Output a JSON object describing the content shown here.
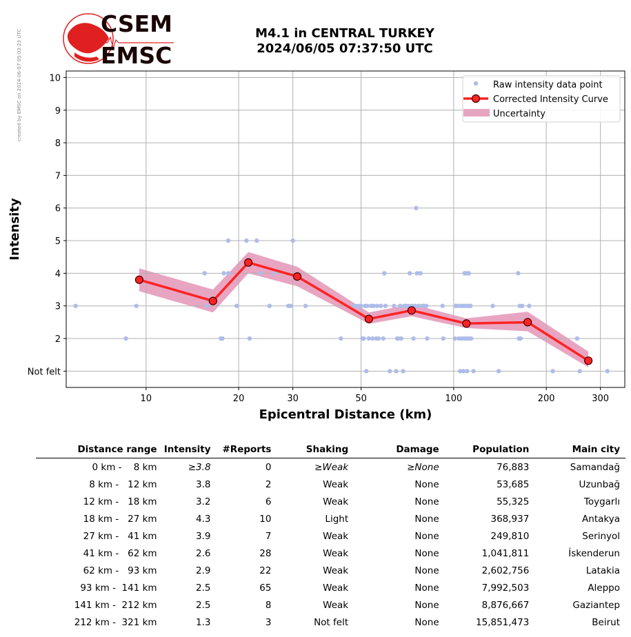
{
  "side_note": "created by EMSC on 2024-06-07 05:03:23 UTC",
  "logo": {
    "line1": "CSEM",
    "line2": "EMSC"
  },
  "title_line1": "M4.1 in CENTRAL TURKEY",
  "title_line2": "2024/06/05 07:37:50 UTC",
  "colors": {
    "raw": "#aebce8",
    "curve": "#ff2222",
    "marker_edge": "#3a0000",
    "band": "#e8a5c2",
    "grid": "#b0b0b0",
    "logo_red": "#e02020"
  },
  "chart_data": {
    "type": "scatter",
    "xlabel": "Epicentral Distance (km)",
    "ylabel": "Intensity",
    "x_scale": "log",
    "xlim": [
      5.5,
      360
    ],
    "ylim": [
      0.5,
      10.2
    ],
    "x_ticks": [
      10,
      20,
      30,
      50,
      100,
      200,
      300
    ],
    "y_ticks": [
      1,
      2,
      3,
      4,
      5,
      6,
      7,
      8,
      9,
      10
    ],
    "y_tick_labels": [
      "Not felt",
      "2",
      "3",
      "4",
      "5",
      "6",
      "7",
      "8",
      "9",
      "10"
    ],
    "grid": true,
    "legend_position": "top-right",
    "legend": [
      "Raw intensity data point",
      "Corrected Intensity Curve",
      "Uncertainty"
    ],
    "raw_points": [
      [
        5.9,
        3
      ],
      [
        8.6,
        2
      ],
      [
        9.3,
        3
      ],
      [
        15.5,
        4
      ],
      [
        15.8,
        3
      ],
      [
        17.5,
        2
      ],
      [
        17.7,
        2
      ],
      [
        17.9,
        4
      ],
      [
        18.5,
        4
      ],
      [
        18.5,
        5
      ],
      [
        19.7,
        3
      ],
      [
        21.2,
        5
      ],
      [
        21.7,
        2
      ],
      [
        22.9,
        5
      ],
      [
        23.5,
        4
      ],
      [
        25.2,
        3
      ],
      [
        26.2,
        4
      ],
      [
        29.0,
        3
      ],
      [
        29.5,
        3
      ],
      [
        30.0,
        5
      ],
      [
        33.0,
        3
      ],
      [
        43.0,
        2
      ],
      [
        47.5,
        3
      ],
      [
        48.5,
        3
      ],
      [
        49.5,
        3
      ],
      [
        50.0,
        3
      ],
      [
        50.5,
        2
      ],
      [
        51.0,
        2
      ],
      [
        51.5,
        3
      ],
      [
        52.0,
        1
      ],
      [
        52.5,
        3
      ],
      [
        53.0,
        2
      ],
      [
        54.0,
        3
      ],
      [
        54.5,
        2
      ],
      [
        55.0,
        3
      ],
      [
        56.0,
        2
      ],
      [
        56.5,
        3
      ],
      [
        57.0,
        2
      ],
      [
        58.0,
        3
      ],
      [
        59.0,
        2
      ],
      [
        59.5,
        4
      ],
      [
        60.0,
        3
      ],
      [
        62.0,
        1
      ],
      [
        64.0,
        3
      ],
      [
        65.0,
        1
      ],
      [
        65.5,
        2
      ],
      [
        66.0,
        2
      ],
      [
        67.0,
        3
      ],
      [
        67.5,
        2
      ],
      [
        68.5,
        1
      ],
      [
        69.0,
        3
      ],
      [
        70.0,
        3
      ],
      [
        71.0,
        3
      ],
      [
        72.0,
        4
      ],
      [
        73.0,
        3
      ],
      [
        73.5,
        3
      ],
      [
        74.0,
        2
      ],
      [
        75.0,
        3
      ],
      [
        75.5,
        6
      ],
      [
        76.0,
        4
      ],
      [
        77.0,
        3
      ],
      [
        78.0,
        4
      ],
      [
        79.0,
        3
      ],
      [
        80.0,
        3
      ],
      [
        82.0,
        2
      ],
      [
        81.5,
        3
      ],
      [
        92.0,
        3
      ],
      [
        92.5,
        2
      ],
      [
        101.0,
        2
      ],
      [
        101.5,
        3
      ],
      [
        103.0,
        3
      ],
      [
        104.0,
        2
      ],
      [
        105.0,
        1
      ],
      [
        105.5,
        3
      ],
      [
        106.0,
        2
      ],
      [
        107.0,
        3
      ],
      [
        107.5,
        1
      ],
      [
        108.0,
        2
      ],
      [
        108.5,
        4
      ],
      [
        109.0,
        3
      ],
      [
        109.5,
        2
      ],
      [
        110.0,
        4
      ],
      [
        110.5,
        1
      ],
      [
        111.0,
        3
      ],
      [
        111.5,
        2
      ],
      [
        112.0,
        4
      ],
      [
        112.5,
        3
      ],
      [
        113.0,
        2
      ],
      [
        113.5,
        3
      ],
      [
        114.0,
        2
      ],
      [
        116.0,
        1
      ],
      [
        134.0,
        3
      ],
      [
        140.0,
        1
      ],
      [
        162.0,
        4
      ],
      [
        163.0,
        2
      ],
      [
        164.0,
        3
      ],
      [
        165.0,
        2
      ],
      [
        167.0,
        3
      ],
      [
        176.0,
        3
      ],
      [
        210.0,
        1
      ],
      [
        252.0,
        2
      ],
      [
        257.0,
        1
      ],
      [
        316.0,
        1
      ]
    ],
    "corrected_curve": [
      {
        "x": 9.5,
        "y": 3.8
      },
      {
        "x": 16.5,
        "y": 3.15
      },
      {
        "x": 21.5,
        "y": 4.33
      },
      {
        "x": 31.0,
        "y": 3.9
      },
      {
        "x": 53.0,
        "y": 2.6
      },
      {
        "x": 73.0,
        "y": 2.86
      },
      {
        "x": 110.0,
        "y": 2.46
      },
      {
        "x": 174.0,
        "y": 2.5
      },
      {
        "x": 274.0,
        "y": 1.32
      }
    ],
    "uncertainty": [
      {
        "x": 9.5,
        "lo": 3.45,
        "hi": 4.15
      },
      {
        "x": 16.5,
        "lo": 2.8,
        "hi": 3.5
      },
      {
        "x": 21.5,
        "lo": 4.0,
        "hi": 4.65
      },
      {
        "x": 31.0,
        "lo": 3.6,
        "hi": 4.2
      },
      {
        "x": 53.0,
        "lo": 2.45,
        "hi": 2.8
      },
      {
        "x": 73.0,
        "lo": 2.68,
        "hi": 3.05
      },
      {
        "x": 110.0,
        "lo": 2.32,
        "hi": 2.62
      },
      {
        "x": 174.0,
        "lo": 2.22,
        "hi": 2.82
      },
      {
        "x": 274.0,
        "lo": 1.12,
        "hi": 1.6
      }
    ]
  },
  "table": {
    "headers": [
      "Distance range",
      "Intensity",
      "#Reports",
      "Shaking",
      "Damage",
      "Population",
      "Main city"
    ],
    "rows": [
      {
        "range": "0 km -    8 km",
        "intensity": "≥3.8",
        "reports": "0",
        "shaking": "≥Weak",
        "damage": "≥None",
        "population": "76,883",
        "city": "Samandağ"
      },
      {
        "range": "8 km -   12 km",
        "intensity": "3.8",
        "reports": "2",
        "shaking": "Weak",
        "damage": "None",
        "population": "53,685",
        "city": "Uzunbağ"
      },
      {
        "range": "12 km -   18 km",
        "intensity": "3.2",
        "reports": "6",
        "shaking": "Weak",
        "damage": "None",
        "population": "55,325",
        "city": "Toygarlı"
      },
      {
        "range": "18 km -   27 km",
        "intensity": "4.3",
        "reports": "10",
        "shaking": "Light",
        "damage": "None",
        "population": "368,937",
        "city": "Antakya"
      },
      {
        "range": "27 km -   41 km",
        "intensity": "3.9",
        "reports": "7",
        "shaking": "Weak",
        "damage": "None",
        "population": "249,810",
        "city": "Serinyol"
      },
      {
        "range": "41 km -   62 km",
        "intensity": "2.6",
        "reports": "28",
        "shaking": "Weak",
        "damage": "None",
        "population": "1,041,811",
        "city": "İskenderun"
      },
      {
        "range": "62 km -   93 km",
        "intensity": "2.9",
        "reports": "22",
        "shaking": "Weak",
        "damage": "None",
        "population": "2,602,756",
        "city": "Latakia"
      },
      {
        "range": "93 km -  141 km",
        "intensity": "2.5",
        "reports": "65",
        "shaking": "Weak",
        "damage": "None",
        "population": "7,992,503",
        "city": "Aleppo"
      },
      {
        "range": "141 km -  212 km",
        "intensity": "2.5",
        "reports": "8",
        "shaking": "Weak",
        "damage": "None",
        "population": "8,876,667",
        "city": "Gaziantep"
      },
      {
        "range": "212 km -  321 km",
        "intensity": "1.3",
        "reports": "3",
        "shaking": "Not felt",
        "damage": "None",
        "population": "15,851,473",
        "city": "Beirut"
      }
    ]
  }
}
